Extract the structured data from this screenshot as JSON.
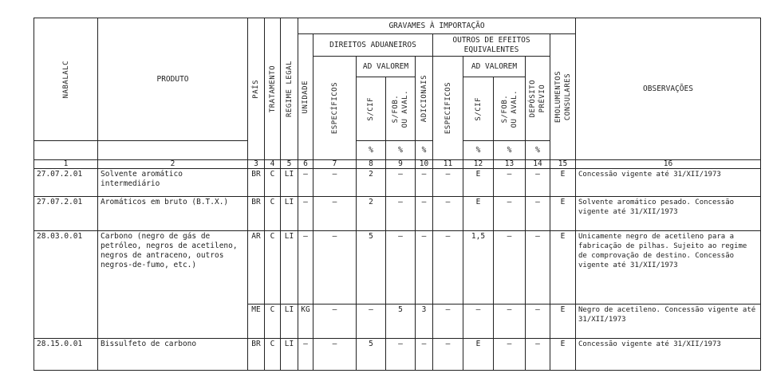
{
  "header": {
    "gravames": "GRAVAMES À IMPORTAÇÃO",
    "direitos": "DIREITOS ADUANEIROS",
    "outros": "OUTROS DE EFEITOS EQUIVALENTES",
    "ad_valorem_1": "AD VALOREM",
    "ad_valorem_2": "AD VALOREM",
    "cols": [
      "NABALALC",
      "PRODUTO",
      "PAÍS",
      "TRATAMENTO",
      "REGIME LEGAL",
      "UNIDADE",
      "ESPECÍFICOS",
      "S/CIF",
      "S/FOB.\nOU AVAL.",
      "ADICIONAIS",
      "ESPECÍFICOS",
      "S/CIF",
      "S/FOB.\nOU AVAL.",
      "DEPÓSITO\nPRÉVIO",
      "EMOLUMENTOS\nCONSULARES",
      "OBSERVAÇÕES"
    ],
    "pct": "%",
    "numbers": [
      "1",
      "2",
      "3",
      "4",
      "5",
      "6",
      "7",
      "8",
      "9",
      "10",
      "11",
      "12",
      "13",
      "14",
      "15",
      "16"
    ]
  },
  "rows": [
    {
      "cells": [
        "27.07.2.01",
        "Solvente aromático intermediário",
        "BR",
        "C",
        "LI",
        "—",
        "—",
        "2",
        "—",
        "—",
        "—",
        "E",
        "—",
        "—",
        "E",
        "Concessão vigente até 31/XII/1973"
      ]
    },
    {
      "cells": [
        "27.07.2.01",
        "Aromáticos em bruto (B.T.X.)",
        "BR",
        "C",
        "LI",
        "—",
        "—",
        "2",
        "—",
        "—",
        "—",
        "E",
        "—",
        "—",
        "E",
        "Solvente aromático pesado. Concessão vigente até 31/XII/1973"
      ]
    },
    {
      "cells": [
        "28.03.0.01",
        "Carbono (negro de gás de petróleo, negros de acetileno, negros de antraceno, outros negros-de-fumo, etc.)",
        "AR",
        "C",
        "LI",
        "—",
        "—",
        "5",
        "—",
        "—",
        "—",
        "1,5",
        "—",
        "—",
        "E",
        "Unicamente negro de acetileno para a fabricação de pilhas. Sujeito ao regime de comprovação de destino. Concessão vigente até 31/XII/1973"
      ]
    },
    {
      "cells": [
        "",
        "",
        "ME",
        "C",
        "LI",
        "KG",
        "—",
        "—",
        "5",
        "3",
        "—",
        "—",
        "—",
        "—",
        "E",
        "Negro de acetileno. Concessão vigente até 31/XII/1973"
      ]
    },
    {
      "cells": [
        "28.15.0.01",
        "Bissulfeto de carbono",
        "BR",
        "C",
        "LI",
        "—",
        "—",
        "5",
        "—",
        "—",
        "—",
        "E",
        "—",
        "—",
        "E",
        "Concessão vigente até 31/XII/1973"
      ]
    }
  ]
}
